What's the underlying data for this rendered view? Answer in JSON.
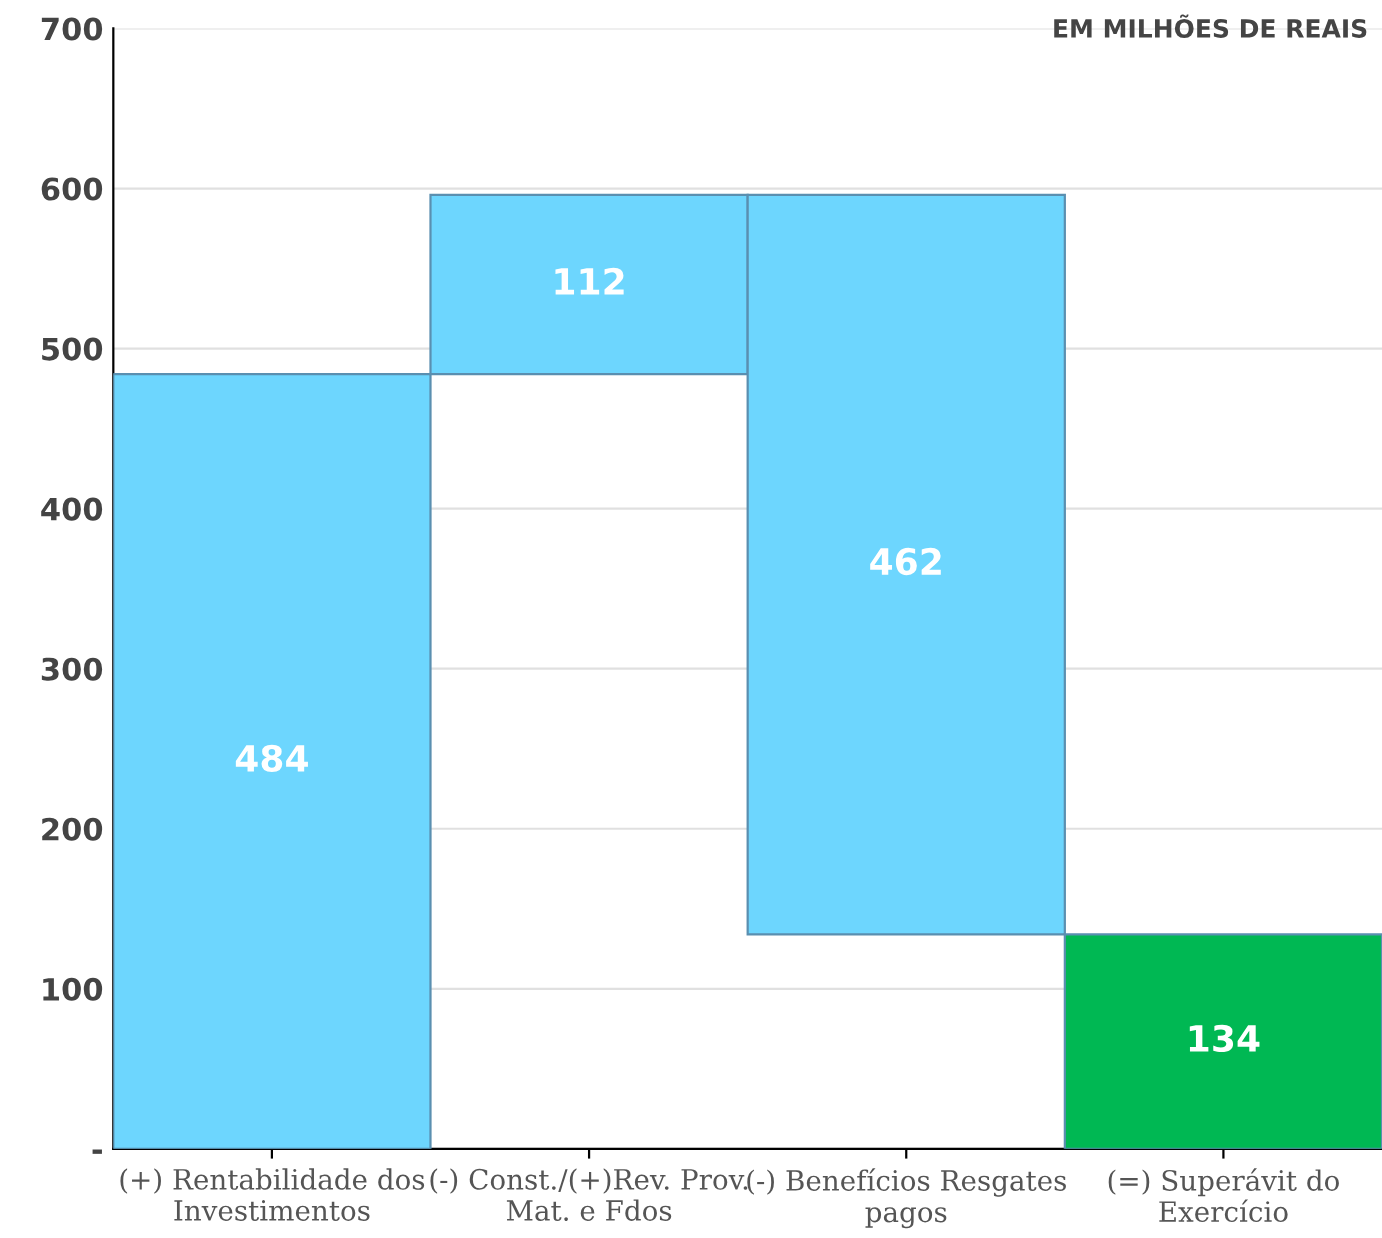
{
  "chart_data": {
    "type": "bar",
    "categories": [
      "(+) Rentabilidade dos\nInvestimentos",
      "(-) Const./(+)Rev. Prov.\nMat. e Fdos",
      "(-) Benefícios Resgates\npagos",
      "(=) Superávit do\nExercício"
    ],
    "values": [
      484,
      112,
      462,
      134
    ],
    "base": [
      0,
      484,
      134,
      0
    ],
    "colors": [
      "#6dd6fe",
      "#6dd6fe",
      "#6dd6fe",
      "#00b853"
    ],
    "data_labels": true,
    "ylim": [
      0,
      700
    ],
    "yticks": [
      {
        "value": 0,
        "label": "-"
      },
      100,
      200,
      300,
      400,
      500,
      600,
      700
    ],
    "grid": "y",
    "annotations": [
      "EM MILHÕES DE REAIS"
    ]
  }
}
